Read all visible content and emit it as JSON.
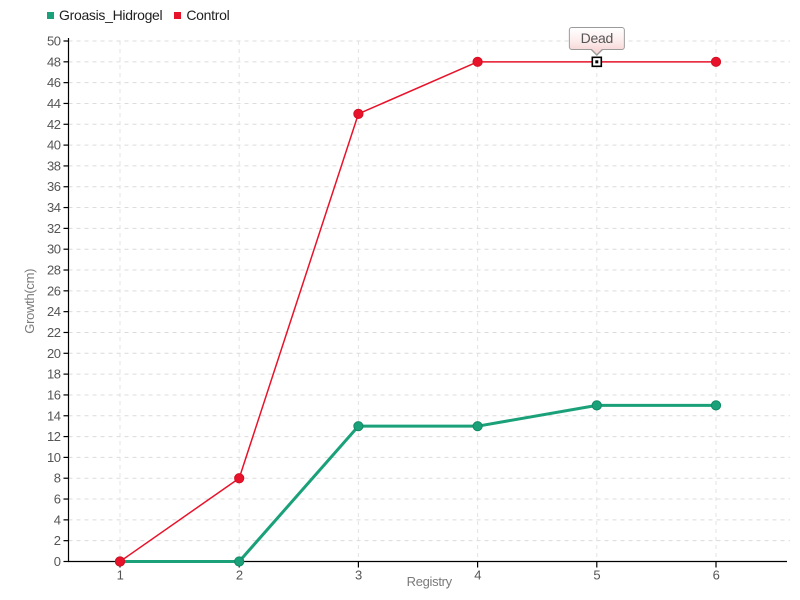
{
  "legend": {
    "items": [
      {
        "label": "Groasis_Hidrogel",
        "color": "#1aa179"
      },
      {
        "label": "Control",
        "color": "#e8132a"
      }
    ]
  },
  "tooltip": {
    "text": "Dead"
  },
  "chart_data": {
    "type": "line",
    "title": "",
    "xlabel": "Registry",
    "ylabel": "Growth(cm)",
    "x": [
      1,
      2,
      3,
      4,
      5,
      6
    ],
    "xticks": [
      1,
      2,
      3,
      4,
      5,
      6
    ],
    "ylim": [
      0,
      50
    ],
    "ytick_step": 2,
    "grid": true,
    "legend_position": "top-left",
    "series": [
      {
        "name": "Groasis_Hidrogel",
        "color": "#1aa179",
        "stroke_dark": "#0f8a64",
        "line_width": 3,
        "marker": "circle",
        "values": [
          0,
          0,
          13,
          13,
          15,
          15
        ]
      },
      {
        "name": "Control",
        "color": "#e8132a",
        "stroke_dark": "#d40f24",
        "line_width": 1.5,
        "marker": "circle",
        "values": [
          0,
          8,
          43,
          48,
          48,
          48
        ]
      }
    ],
    "annotation": {
      "text": "Dead",
      "series": "Control",
      "x": 5,
      "y": 48,
      "marker": "dead-square"
    }
  },
  "colors": {
    "axis": "#000000",
    "grid": "#dcdcdc",
    "grid_vertical": "#e3e3e3",
    "tick_text": "#555555",
    "axis_title_text": "#7a7a7a"
  }
}
